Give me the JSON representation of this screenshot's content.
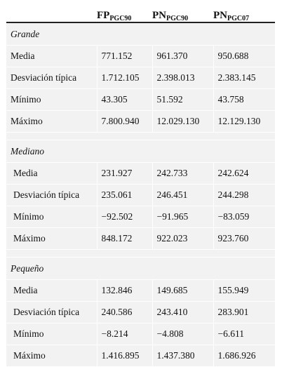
{
  "columns": [
    {
      "main": "FP",
      "sub": "PGC90"
    },
    {
      "main": "PN",
      "sub": "PGC90"
    },
    {
      "main": "PN",
      "sub": "PGC07"
    }
  ],
  "sections": [
    {
      "title": "Grande",
      "rows": [
        {
          "label": "Media",
          "values": [
            "771.152",
            "961.370",
            "950.688"
          ]
        },
        {
          "label": "Desviación típica",
          "values": [
            "1.712.105",
            "2.398.013",
            "2.383.145"
          ]
        },
        {
          "label": "Mínimo",
          "values": [
            "43.305",
            "51.592",
            "43.758"
          ]
        },
        {
          "label": "Máximo",
          "values": [
            "7.800.940",
            "12.029.130",
            "12.129.130"
          ]
        }
      ]
    },
    {
      "title": "Mediano",
      "rows": [
        {
          "label": "Media",
          "values": [
            "231.927",
            "242.733",
            "242.624"
          ]
        },
        {
          "label": "Desviación típica",
          "values": [
            "235.061",
            "246.451",
            "244.298"
          ]
        },
        {
          "label": "Mínimo",
          "values": [
            "−92.502",
            "−91.965",
            "−83.059"
          ]
        },
        {
          "label": "Máximo",
          "values": [
            "848.172",
            "922.023",
            "923.760"
          ]
        }
      ]
    },
    {
      "title": "Pequeño",
      "rows": [
        {
          "label": "Media",
          "values": [
            "132.846",
            "149.685",
            "155.949"
          ]
        },
        {
          "label": "Desviación típica",
          "values": [
            "240.586",
            "243.410",
            "283.901"
          ]
        },
        {
          "label": "Mínimo",
          "values": [
            "−8.214",
            "−4.808",
            "−6.611"
          ]
        },
        {
          "label": "Máximo",
          "values": [
            "1.416.895",
            "1.437.380",
            "1.686.926"
          ]
        }
      ]
    }
  ]
}
